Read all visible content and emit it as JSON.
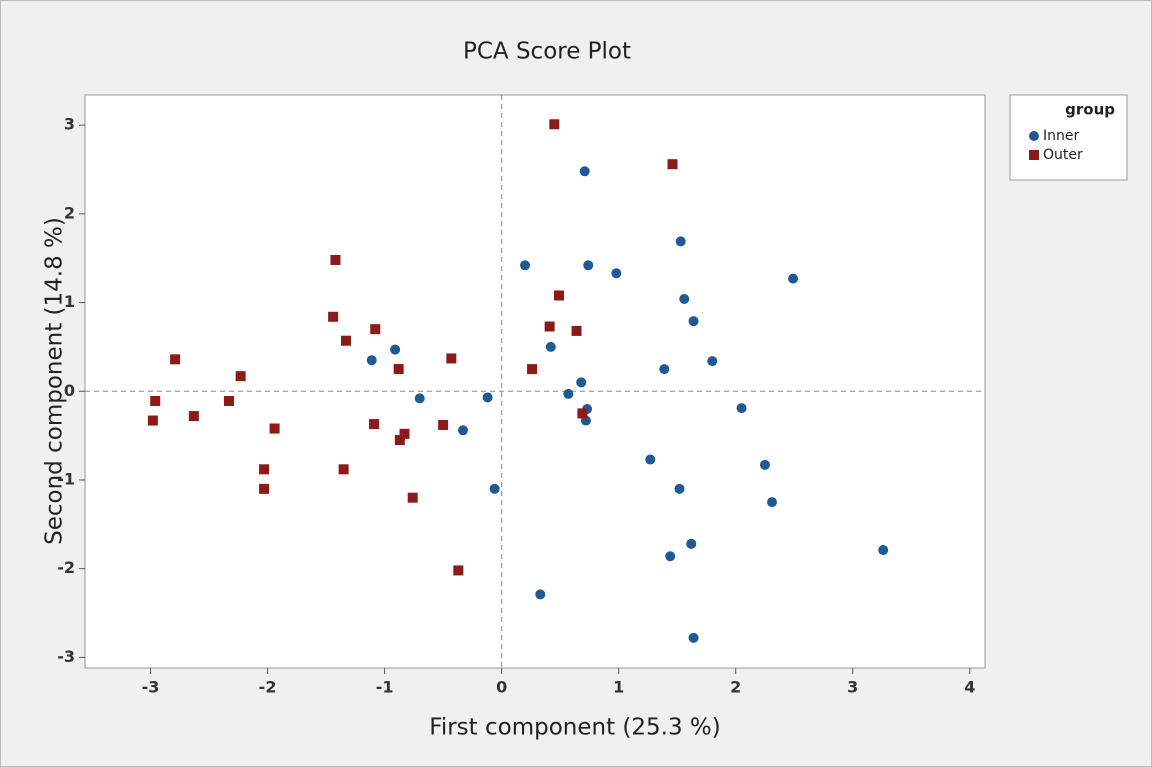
{
  "chart_data": {
    "type": "scatter",
    "title": "PCA Score Plot",
    "x_label": "First component (25.3 %)",
    "y_label": "Second component (14.8 %)",
    "xlim": [
      -3.56,
      4.13
    ],
    "ylim": [
      -3.12,
      3.34
    ],
    "xticks": [
      -3,
      -2,
      -1,
      0,
      1,
      2,
      3,
      4
    ],
    "yticks": [
      -3,
      -2,
      -1,
      0,
      1,
      2,
      3
    ],
    "reference_lines": {
      "x": 0,
      "y": 0
    },
    "legend": {
      "title": "group",
      "position": "right"
    },
    "series": [
      {
        "name": "Inner",
        "color": "#1f5a94",
        "marker": "circle",
        "x": [
          0.71,
          1.53,
          0.2,
          0.74,
          0.98,
          2.49,
          1.56,
          1.64,
          0.42,
          -1.11,
          -0.91,
          1.8,
          1.39,
          0.68,
          0.57,
          -0.7,
          -0.12,
          0.73,
          0.72,
          2.05,
          -0.33,
          1.27,
          2.25,
          1.52,
          2.31,
          -0.06,
          3.26,
          1.62,
          1.44,
          0.33,
          1.64
        ],
        "y": [
          2.48,
          1.69,
          1.42,
          1.42,
          1.33,
          1.27,
          1.04,
          0.79,
          0.5,
          0.35,
          0.47,
          0.34,
          0.25,
          0.1,
          -0.03,
          -0.08,
          -0.07,
          -0.2,
          -0.33,
          -0.19,
          -0.44,
          -0.77,
          -0.83,
          -1.1,
          -1.25,
          -1.1,
          -1.79,
          -1.72,
          -1.86,
          -2.29,
          -2.78
        ]
      },
      {
        "name": "Outer",
        "color": "#8b1a1a",
        "marker": "square",
        "x": [
          0.45,
          1.46,
          -1.42,
          0.49,
          -1.44,
          -1.08,
          0.41,
          0.64,
          -1.33,
          -2.79,
          -0.43,
          -2.23,
          -0.88,
          0.26,
          -2.96,
          -2.33,
          -2.63,
          -2.98,
          -1.94,
          -1.09,
          -0.5,
          -0.83,
          -0.87,
          0.69,
          -2.03,
          -1.35,
          -2.03,
          -0.76,
          -0.37
        ],
        "y": [
          3.01,
          2.56,
          1.48,
          1.08,
          0.84,
          0.7,
          0.73,
          0.68,
          0.57,
          0.36,
          0.37,
          0.17,
          0.25,
          0.25,
          -0.11,
          -0.11,
          -0.28,
          -0.33,
          -0.42,
          -0.37,
          -0.38,
          -0.48,
          -0.55,
          -0.25,
          -0.88,
          -0.88,
          -1.1,
          -1.2,
          -2.02
        ]
      }
    ]
  }
}
